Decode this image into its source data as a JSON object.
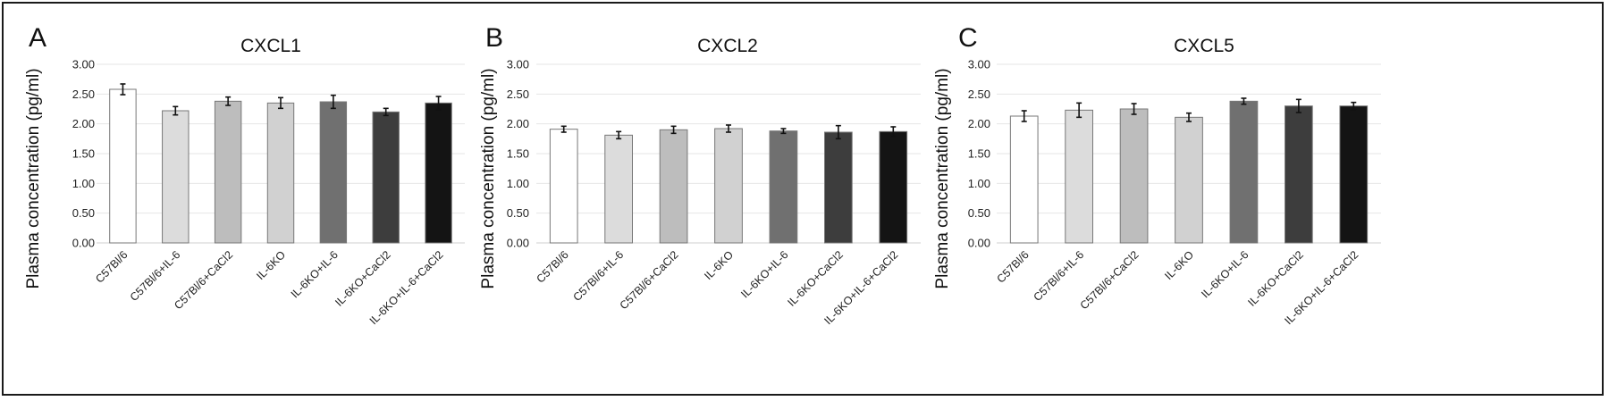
{
  "chart_data": [
    {
      "type": "bar",
      "panel": "A",
      "title": "CXCL1",
      "xlabel": "",
      "ylabel": "Plasma concentration (pg/ml)",
      "ylim": [
        0,
        3
      ],
      "yticks": [
        "0.00",
        "0.50",
        "1.00",
        "1.50",
        "2.00",
        "2.50",
        "3.00"
      ],
      "categories": [
        "C57Bl/6",
        "C57Bl/6+IL-6",
        "C57Bl/6+CaCl2",
        "IL-6KO",
        "IL-6KO+IL-6",
        "IL-6KO+CaCl2",
        "IL-6KO+IL-6+CaCl2"
      ],
      "values": [
        2.58,
        2.22,
        2.38,
        2.35,
        2.37,
        2.2,
        2.35
      ],
      "errors": [
        0.09,
        0.07,
        0.07,
        0.09,
        0.11,
        0.06,
        0.11
      ],
      "bar_colors": [
        "#ffffff",
        "#dcdcdc",
        "#bdbdbd",
        "#d1d1d1",
        "#707070",
        "#3d3d3d",
        "#141414"
      ],
      "grid": true
    },
    {
      "type": "bar",
      "panel": "B",
      "title": "CXCL2",
      "xlabel": "",
      "ylabel": "Plasma concentration (pg/ml)",
      "ylim": [
        0,
        3
      ],
      "yticks": [
        "0.00",
        "0.50",
        "1.00",
        "1.50",
        "2.00",
        "2.50",
        "3.00"
      ],
      "categories": [
        "C57Bl/6",
        "C57Bl/6+IL-6",
        "C57Bl/6+CaCl2",
        "IL-6KO",
        "IL-6KO+IL-6",
        "IL-6KO+CaCl2",
        "IL-6KO+IL-6+CaCl2"
      ],
      "values": [
        1.91,
        1.81,
        1.9,
        1.92,
        1.88,
        1.86,
        1.87
      ],
      "errors": [
        0.05,
        0.06,
        0.06,
        0.06,
        0.04,
        0.11,
        0.08
      ],
      "bar_colors": [
        "#ffffff",
        "#dcdcdc",
        "#bdbdbd",
        "#d1d1d1",
        "#707070",
        "#3d3d3d",
        "#141414"
      ],
      "grid": true
    },
    {
      "type": "bar",
      "panel": "C",
      "title": "CXCL5",
      "xlabel": "",
      "ylabel": "Plasma concentration (pg/ml)",
      "ylim": [
        0,
        3
      ],
      "yticks": [
        "0.00",
        "0.50",
        "1.00",
        "1.50",
        "2.00",
        "2.50",
        "3.00"
      ],
      "categories": [
        "C57Bl/6",
        "C57Bl/6+IL-6",
        "C57Bl/6+CaCl2",
        "IL-6KO",
        "IL-6KO+IL-6",
        "IL-6KO+CaCl2",
        "IL-6KO+IL-6+CaCl2"
      ],
      "values": [
        2.13,
        2.23,
        2.25,
        2.11,
        2.38,
        2.3,
        2.3
      ],
      "errors": [
        0.09,
        0.12,
        0.09,
        0.07,
        0.05,
        0.11,
        0.06
      ],
      "bar_colors": [
        "#ffffff",
        "#dcdcdc",
        "#bdbdbd",
        "#d1d1d1",
        "#707070",
        "#3d3d3d",
        "#141414"
      ],
      "grid": true
    }
  ]
}
